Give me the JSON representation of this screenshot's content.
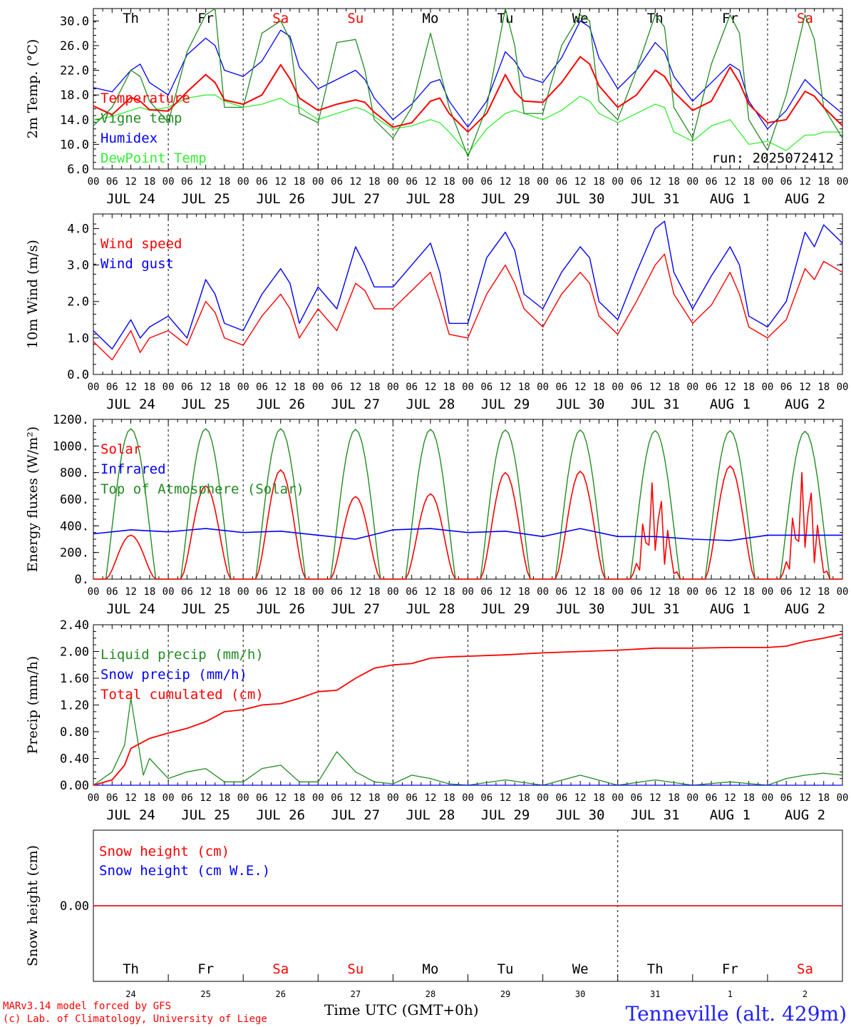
{
  "chart_data": [
    {
      "type": "line",
      "id": "temperature",
      "ylabel": "2m Temp. (°C)",
      "ylim": [
        6,
        32
      ],
      "yticks": [
        "6.0",
        "10.0",
        "14.0",
        "18.0",
        "22.0",
        "26.0",
        "30.0"
      ],
      "annotation": "run: 2025072412",
      "x_hours": [
        0,
        6,
        12,
        15,
        18,
        24,
        30,
        36,
        39,
        42,
        48,
        54,
        60,
        63,
        66,
        72,
        78,
        84,
        87,
        90,
        96,
        102,
        108,
        111,
        114,
        120,
        126,
        132,
        135,
        138,
        144,
        150,
        156,
        159,
        162,
        168,
        174,
        180,
        183,
        186,
        192,
        198,
        204,
        207,
        210,
        216,
        222,
        228,
        231,
        234,
        240
      ],
      "series": [
        {
          "name": "Temperature",
          "color": "#ff0000",
          "values": [
            16.2,
            14.8,
            17.6,
            17.0,
            15.6,
            15.4,
            18.5,
            21.3,
            20.0,
            17.2,
            16.5,
            18.0,
            22.9,
            20.6,
            17.5,
            15.5,
            16.5,
            17.2,
            16.8,
            15.2,
            12.8,
            13.5,
            17.0,
            17.5,
            15.0,
            12.0,
            15.0,
            21.3,
            18.5,
            17.0,
            16.8,
            20.0,
            24.2,
            23.0,
            19.5,
            16.0,
            18.0,
            22.0,
            21.0,
            18.5,
            15.5,
            17.0,
            22.5,
            20.0,
            16.5,
            13.5,
            14.0,
            18.6,
            17.8,
            16.0,
            13.0
          ]
        },
        {
          "name": "Vigne temp",
          "color": "#228b22",
          "values": [
            13.0,
            16.0,
            22.0,
            21.0,
            17.0,
            13.5,
            25.0,
            31.0,
            32.0,
            16.0,
            16.0,
            28.0,
            30.0,
            27.0,
            15.0,
            13.5,
            26.5,
            27.0,
            22.0,
            14.0,
            11.0,
            16.0,
            28.0,
            22.0,
            16.0,
            8.0,
            16.0,
            32.0,
            26.0,
            15.0,
            15.0,
            26.0,
            31.0,
            30.0,
            17.0,
            14.0,
            22.0,
            31.0,
            29.0,
            16.0,
            11.0,
            23.0,
            31.0,
            28.0,
            14.0,
            9.0,
            18.0,
            31.0,
            27.0,
            16.0,
            11.0
          ]
        },
        {
          "name": "Humidex",
          "color": "#0000ff",
          "values": [
            19.2,
            18.5,
            22.0,
            23.0,
            20.0,
            18.0,
            24.5,
            27.2,
            26.0,
            22.0,
            21.0,
            23.5,
            28.5,
            27.5,
            22.5,
            19.0,
            20.5,
            22.0,
            20.5,
            17.5,
            14.0,
            16.5,
            20.0,
            20.5,
            17.0,
            12.8,
            17.0,
            25.0,
            23.5,
            21.0,
            20.0,
            24.0,
            30.0,
            29.0,
            24.0,
            19.0,
            22.0,
            26.5,
            25.0,
            21.0,
            17.0,
            20.0,
            23.0,
            22.0,
            17.0,
            12.5,
            15.5,
            20.5,
            19.0,
            17.5,
            15.0
          ]
        },
        {
          "name": "DewPoint Temp",
          "color": "#33ee33",
          "values": [
            14.0,
            14.5,
            15.5,
            16.0,
            15.5,
            16.0,
            17.5,
            18.0,
            18.0,
            17.0,
            16.0,
            16.5,
            17.5,
            16.5,
            16.0,
            14.0,
            15.0,
            16.0,
            15.5,
            14.5,
            12.5,
            13.0,
            14.0,
            13.5,
            12.0,
            8.5,
            12.5,
            15.0,
            15.5,
            15.0,
            14.0,
            15.5,
            17.8,
            17.0,
            15.0,
            13.5,
            15.0,
            16.5,
            16.0,
            12.0,
            10.5,
            13.0,
            14.0,
            12.0,
            10.0,
            10.5,
            9.0,
            11.5,
            11.5,
            12.0,
            12.0
          ]
        }
      ]
    },
    {
      "type": "line",
      "id": "wind",
      "ylabel": "10m Wind (m/s)",
      "ylim": [
        0,
        4.4
      ],
      "yticks": [
        "0.0",
        "1.0",
        "2.0",
        "3.0",
        "4.0"
      ],
      "x_hours": [
        0,
        6,
        12,
        15,
        18,
        24,
        30,
        36,
        39,
        42,
        48,
        54,
        60,
        63,
        66,
        72,
        78,
        84,
        87,
        90,
        96,
        102,
        108,
        111,
        114,
        120,
        126,
        132,
        135,
        138,
        144,
        150,
        156,
        159,
        162,
        168,
        174,
        180,
        183,
        186,
        192,
        198,
        204,
        207,
        210,
        216,
        222,
        228,
        231,
        234,
        240
      ],
      "series": [
        {
          "name": "Wind speed",
          "color": "#ff0000",
          "values": [
            0.9,
            0.4,
            1.2,
            0.6,
            1.0,
            1.2,
            0.8,
            2.0,
            1.7,
            1.0,
            0.8,
            1.6,
            2.2,
            1.8,
            1.0,
            1.8,
            1.2,
            2.5,
            2.3,
            1.8,
            1.8,
            2.3,
            2.8,
            2.0,
            1.1,
            1.0,
            2.2,
            3.0,
            2.5,
            1.8,
            1.3,
            2.2,
            2.8,
            2.5,
            1.6,
            1.1,
            2.0,
            3.0,
            3.3,
            2.2,
            1.4,
            1.9,
            2.8,
            2.2,
            1.3,
            1.0,
            1.5,
            2.9,
            2.6,
            3.1,
            2.8
          ]
        },
        {
          "name": "Wind gust",
          "color": "#0000ff",
          "values": [
            1.2,
            0.7,
            1.5,
            1.0,
            1.3,
            1.6,
            1.0,
            2.6,
            2.2,
            1.4,
            1.2,
            2.2,
            2.9,
            2.5,
            1.4,
            2.4,
            1.8,
            3.5,
            3.0,
            2.4,
            2.4,
            3.0,
            3.6,
            2.8,
            1.4,
            1.4,
            3.2,
            3.9,
            3.4,
            2.2,
            1.8,
            2.8,
            3.5,
            3.2,
            2.0,
            1.5,
            2.8,
            4.0,
            4.2,
            2.8,
            1.8,
            2.7,
            3.5,
            3.0,
            1.6,
            1.3,
            2.0,
            3.9,
            3.5,
            4.1,
            3.6
          ]
        }
      ]
    },
    {
      "type": "line",
      "id": "energy",
      "ylabel": "Energy fluxes (W/m2)",
      "ylim": [
        0,
        1200
      ],
      "yticks": [
        "0.",
        "200.",
        "400.",
        "600.",
        "800.",
        "1000.",
        "1200."
      ],
      "series": [
        {
          "name": "Solar",
          "color": "#ff0000",
          "peaks": [
            330,
            700,
            820,
            620,
            640,
            800,
            810,
            750,
            850,
            830
          ]
        },
        {
          "name": "Infrared",
          "color": "#0000ff",
          "values": [
            340,
            370,
            355,
            380,
            350,
            360,
            330,
            300,
            370,
            380,
            350,
            360,
            320,
            380,
            320,
            320,
            300,
            290,
            330,
            330,
            330
          ]
        },
        {
          "name": "Top of Atmosphere (Solar)",
          "color": "#228b22",
          "peaks": [
            1130,
            1130,
            1130,
            1125,
            1125,
            1120,
            1120,
            1115,
            1115,
            1110
          ]
        }
      ]
    },
    {
      "type": "line",
      "id": "precip",
      "ylabel": "Precip (mm/h)",
      "ylim": [
        0,
        2.4
      ],
      "yticks": [
        "0.00",
        "0.40",
        "0.80",
        "1.20",
        "1.60",
        "2.00",
        "2.40"
      ],
      "x_hours": [
        0,
        6,
        10,
        12,
        16,
        18,
        24,
        30,
        36,
        42,
        48,
        54,
        60,
        66,
        72,
        78,
        84,
        90,
        96,
        102,
        108,
        114,
        120,
        132,
        144,
        156,
        168,
        180,
        192,
        204,
        216,
        222,
        228,
        234,
        240
      ],
      "series": [
        {
          "name": "Liquid precip (mm/h)",
          "color": "#228b22",
          "values": [
            0.0,
            0.2,
            0.6,
            1.3,
            0.15,
            0.4,
            0.1,
            0.2,
            0.25,
            0.05,
            0.05,
            0.25,
            0.3,
            0.05,
            0.05,
            0.5,
            0.2,
            0.05,
            0.02,
            0.15,
            0.1,
            0.02,
            0.0,
            0.08,
            0.0,
            0.15,
            0.0,
            0.08,
            0.0,
            0.05,
            0.0,
            0.1,
            0.15,
            0.18,
            0.15
          ]
        },
        {
          "name": "Snow precip (mm/h)",
          "color": "#0000ff",
          "values": [
            0,
            0,
            0,
            0,
            0,
            0,
            0,
            0,
            0,
            0,
            0,
            0,
            0,
            0,
            0,
            0,
            0,
            0,
            0,
            0,
            0,
            0,
            0,
            0,
            0,
            0,
            0,
            0,
            0,
            0,
            0,
            0,
            0,
            0,
            0
          ]
        },
        {
          "name": "Total cumulated (cm)",
          "color": "#ff0000",
          "values": [
            0.0,
            0.08,
            0.3,
            0.55,
            0.65,
            0.7,
            0.78,
            0.85,
            0.95,
            1.1,
            1.13,
            1.2,
            1.22,
            1.3,
            1.4,
            1.42,
            1.6,
            1.75,
            1.8,
            1.82,
            1.9,
            1.92,
            1.93,
            1.95,
            1.98,
            2.0,
            2.02,
            2.05,
            2.05,
            2.06,
            2.06,
            2.08,
            2.15,
            2.2,
            2.26
          ]
        }
      ]
    },
    {
      "type": "line",
      "id": "snow",
      "ylabel": "Snow height (cm)",
      "yticks": [
        "0.00"
      ],
      "series": [
        {
          "name": "Snow height (cm)",
          "color": "#ff0000",
          "values": [
            0,
            0
          ]
        },
        {
          "name": "Snow height (cm W.E.)",
          "color": "#0000ff",
          "values": [
            0,
            0
          ]
        }
      ]
    }
  ],
  "days": {
    "weekdays": [
      "Th",
      "Fr",
      "Sa",
      "Su",
      "Mo",
      "Tu",
      "We",
      "Th",
      "Fr",
      "Sa"
    ],
    "weekday_colors": [
      "#000000",
      "#000000",
      "#ff0000",
      "#ff0000",
      "#000000",
      "#000000",
      "#000000",
      "#000000",
      "#000000",
      "#ff0000"
    ],
    "dates": [
      "JUL 24",
      "JUL 25",
      "JUL 26",
      "JUL 27",
      "JUL 28",
      "JUL 29",
      "JUL 30",
      "JUL 31",
      "AUG  1",
      "AUG  2"
    ],
    "day_numbers": [
      "24",
      "25",
      "26",
      "27",
      "28",
      "29",
      "30",
      "31",
      "1",
      "2"
    ],
    "hour_ticks": [
      "00",
      "06",
      "12",
      "18"
    ],
    "last_tick": "00"
  },
  "footer": {
    "model_line": "MARv3.14 model forced by GFS",
    "credit_line": "(c) Lab. of Climatology, University of Liege",
    "time_label": "Time UTC (GMT+0h)",
    "station": "Tenneville (alt. 429m)"
  }
}
